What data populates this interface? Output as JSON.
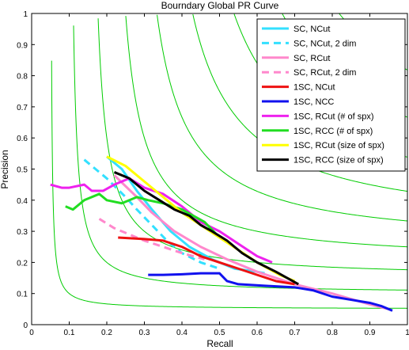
{
  "chart_data": {
    "type": "line",
    "title": "Bourndary Global PR Curve",
    "xlabel": "Recall",
    "ylabel": "Precision",
    "xlim": [
      0,
      1
    ],
    "ylim": [
      0,
      1
    ],
    "xticks": [
      "0",
      "0.1",
      "0.2",
      "0.3",
      "0.4",
      "0.5",
      "0.6",
      "0.7",
      "0.8",
      "0.9",
      "1"
    ],
    "yticks": [
      "0",
      "0.1",
      "0.2",
      "0.3",
      "0.4",
      "0.5",
      "0.6",
      "0.7",
      "0.8",
      "0.9",
      "1"
    ],
    "grid": false,
    "legend_position": "top-right",
    "iso_f_curves": {
      "color": "#00cc00",
      "f_values": [
        0.1,
        0.2,
        0.3,
        0.4,
        0.5,
        0.6,
        0.7,
        0.8,
        0.9
      ]
    },
    "series": [
      {
        "name": "SC, NCut",
        "color": "#33e0ff",
        "dash": "solid",
        "x": [
          0.2,
          0.24,
          0.28,
          0.32,
          0.37,
          0.42,
          0.48,
          0.54,
          0.6,
          0.62
        ],
        "y": [
          0.54,
          0.5,
          0.43,
          0.37,
          0.3,
          0.25,
          0.21,
          0.18,
          0.17,
          0.165
        ]
      },
      {
        "name": "SC, NCut, 2 dim",
        "color": "#33e0ff",
        "dash": "dashed",
        "x": [
          0.14,
          0.2,
          0.25,
          0.28,
          0.32,
          0.36,
          0.4,
          0.45,
          0.5
        ],
        "y": [
          0.53,
          0.47,
          0.41,
          0.37,
          0.32,
          0.27,
          0.23,
          0.2,
          0.18
        ]
      },
      {
        "name": "SC, RCut",
        "color": "#ff88cc",
        "dash": "solid",
        "x": [
          0.22,
          0.28,
          0.32,
          0.38,
          0.45,
          0.52,
          0.6,
          0.7,
          0.8,
          0.9,
          0.95
        ],
        "y": [
          0.48,
          0.41,
          0.36,
          0.3,
          0.25,
          0.21,
          0.17,
          0.13,
          0.1,
          0.065,
          0.05
        ]
      },
      {
        "name": "SC, RCut, 2 dim",
        "color": "#ff88cc",
        "dash": "dashed",
        "x": [
          0.18,
          0.22,
          0.26,
          0.3,
          0.35,
          0.4,
          0.46
        ],
        "y": [
          0.34,
          0.31,
          0.29,
          0.27,
          0.25,
          0.23,
          0.21
        ]
      },
      {
        "name": "1SC, NCut",
        "color": "#ee1111",
        "dash": "solid",
        "x": [
          0.23,
          0.3,
          0.35,
          0.4,
          0.45,
          0.5,
          0.55,
          0.6,
          0.65,
          0.7
        ],
        "y": [
          0.28,
          0.275,
          0.27,
          0.25,
          0.22,
          0.2,
          0.18,
          0.16,
          0.14,
          0.13
        ]
      },
      {
        "name": "1SC, NCC",
        "color": "#1111ee",
        "dash": "solid",
        "x": [
          0.31,
          0.35,
          0.4,
          0.45,
          0.5,
          0.52,
          0.55,
          0.62,
          0.7,
          0.75,
          0.8,
          0.85,
          0.9,
          0.93,
          0.96
        ],
        "y": [
          0.16,
          0.16,
          0.162,
          0.165,
          0.165,
          0.14,
          0.13,
          0.125,
          0.12,
          0.11,
          0.09,
          0.08,
          0.07,
          0.06,
          0.045
        ]
      },
      {
        "name": "1SC, RCut (# of spx)",
        "color": "#ee22ee",
        "dash": "solid",
        "x": [
          0.05,
          0.08,
          0.1,
          0.14,
          0.16,
          0.19,
          0.22,
          0.26,
          0.3,
          0.35,
          0.4,
          0.45,
          0.5,
          0.55,
          0.6,
          0.64
        ],
        "y": [
          0.45,
          0.44,
          0.44,
          0.45,
          0.43,
          0.43,
          0.45,
          0.47,
          0.44,
          0.42,
          0.38,
          0.33,
          0.3,
          0.26,
          0.22,
          0.2
        ]
      },
      {
        "name": "1SC, RCC (# of spx)",
        "color": "#22dd22",
        "dash": "solid",
        "x": [
          0.09,
          0.11,
          0.14,
          0.18,
          0.2,
          0.24,
          0.28,
          0.31,
          0.35,
          0.4,
          0.46,
          0.5
        ],
        "y": [
          0.38,
          0.37,
          0.4,
          0.42,
          0.4,
          0.39,
          0.41,
          0.4,
          0.39,
          0.37,
          0.33,
          0.28
        ]
      },
      {
        "name": "1SC, RCut (size of spx)",
        "color": "#ffff00",
        "dash": "solid",
        "x": [
          0.2,
          0.25,
          0.3,
          0.35,
          0.4,
          0.45,
          0.5,
          0.55,
          0.6,
          0.66,
          0.7
        ],
        "y": [
          0.54,
          0.51,
          0.46,
          0.41,
          0.36,
          0.32,
          0.28,
          0.24,
          0.2,
          0.16,
          0.14
        ]
      },
      {
        "name": "1SC, RCC (size of spx)",
        "color": "#000000",
        "dash": "solid",
        "x": [
          0.22,
          0.26,
          0.3,
          0.34,
          0.38,
          0.42,
          0.45,
          0.48,
          0.52,
          0.56,
          0.6,
          0.65,
          0.71
        ],
        "y": [
          0.49,
          0.47,
          0.43,
          0.4,
          0.37,
          0.35,
          0.32,
          0.3,
          0.27,
          0.23,
          0.2,
          0.17,
          0.13
        ]
      }
    ]
  }
}
